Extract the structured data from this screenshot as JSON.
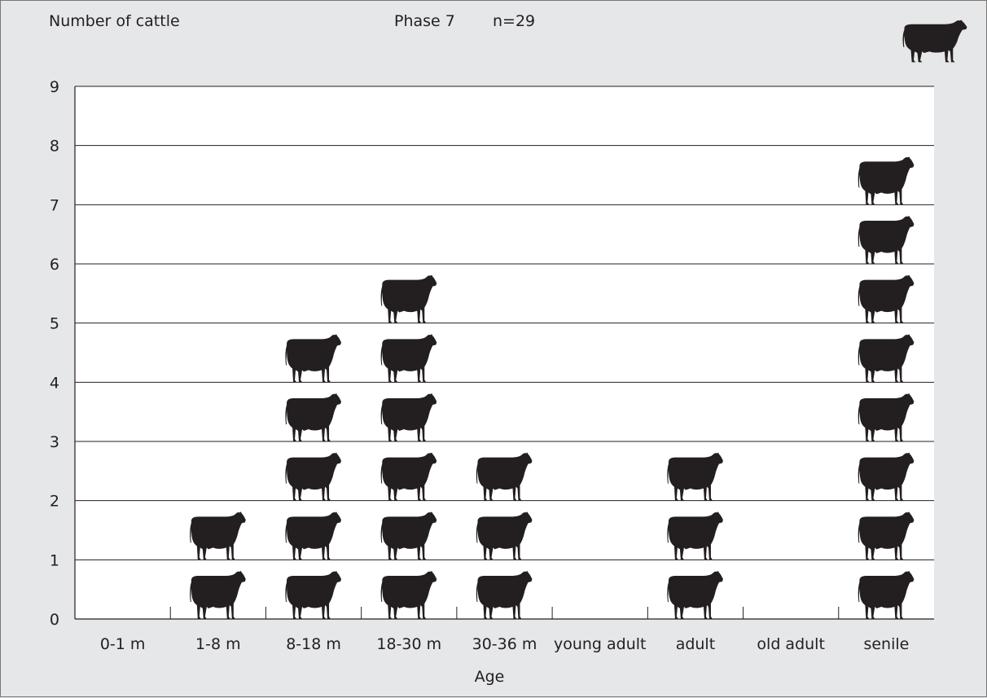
{
  "chart_data": {
    "type": "bar",
    "ylabel": "Number of cattle",
    "title": "Phase 7",
    "subtitle": "n=29",
    "xlabel": "Age",
    "categories": [
      "0-1 m",
      "1-8 m",
      "8-18 m",
      "18-30 m",
      "30-36 m",
      "young adult",
      "adult",
      "old adult",
      "senile"
    ],
    "values": [
      0,
      2,
      5.5,
      6.5,
      3,
      0.5,
      3.5,
      0,
      8
    ],
    "ylim": [
      0,
      9
    ],
    "yticks": [
      "0",
      "1",
      "2",
      "3",
      "4",
      "5",
      "6",
      "7",
      "8",
      "9"
    ],
    "grid": true,
    "marker": "cow-icon",
    "colors": {
      "background": "#e6e7e8",
      "plot": "#ffffff",
      "ink": "#231f20"
    }
  }
}
